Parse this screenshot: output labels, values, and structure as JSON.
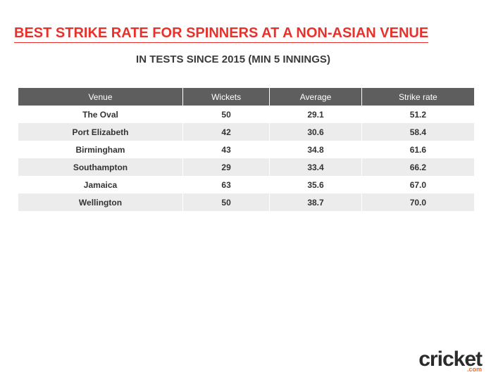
{
  "header": {
    "title": "BEST STRIKE RATE FOR SPINNERS AT A NON-ASIAN VENUE",
    "subtitle": "IN TESTS SINCE 2015 (MIN 5 INNINGS)"
  },
  "table": {
    "columns": [
      "Venue",
      "Wickets",
      "Average",
      "Strike rate"
    ],
    "rows": [
      [
        "The Oval",
        "50",
        "29.1",
        "51.2"
      ],
      [
        "Port Elizabeth",
        "42",
        "30.6",
        "58.4"
      ],
      [
        "Birmingham",
        "43",
        "34.8",
        "61.6"
      ],
      [
        "Southampton",
        "29",
        "33.4",
        "66.2"
      ],
      [
        "Jamaica",
        "63",
        "35.6",
        "67.0"
      ],
      [
        "Wellington",
        "50",
        "38.7",
        "70.0"
      ]
    ]
  },
  "logo": {
    "name": "cricket",
    "domain": ".com"
  }
}
